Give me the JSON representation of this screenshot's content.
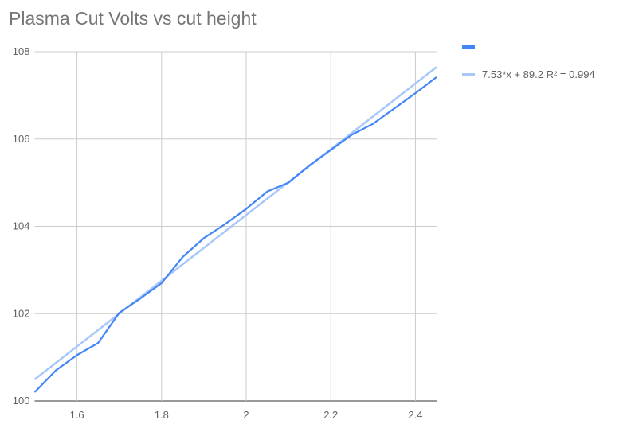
{
  "chart_data": {
    "type": "line",
    "title": "Plasma Cut Volts vs cut height",
    "xlabel": "",
    "ylabel": "",
    "xlim": [
      1.5,
      2.45
    ],
    "ylim": [
      100,
      108
    ],
    "x_ticks": [
      "1.6",
      "1.8",
      "2",
      "2.2",
      "2.4"
    ],
    "y_ticks": [
      "100",
      "102",
      "104",
      "106",
      "108"
    ],
    "grid": true,
    "legend_position": "right",
    "series": [
      {
        "name": "",
        "color": "#4285f4",
        "x": [
          1.5,
          1.55,
          1.6,
          1.65,
          1.7,
          1.75,
          1.8,
          1.85,
          1.9,
          1.95,
          2.0,
          2.05,
          2.1,
          2.15,
          2.2,
          2.25,
          2.3,
          2.35,
          2.4,
          2.45
        ],
        "y": [
          100.2,
          100.7,
          101.05,
          101.33,
          102.02,
          102.35,
          102.7,
          103.3,
          103.73,
          104.05,
          104.4,
          104.8,
          105.0,
          105.4,
          105.75,
          106.1,
          106.35,
          106.7,
          107.05,
          107.42
        ]
      }
    ],
    "trendline": {
      "label": "7.53*x + 89.2 R² = 0.994",
      "slope": 7.53,
      "intercept": 89.2,
      "color": "#a8c7fa"
    }
  }
}
